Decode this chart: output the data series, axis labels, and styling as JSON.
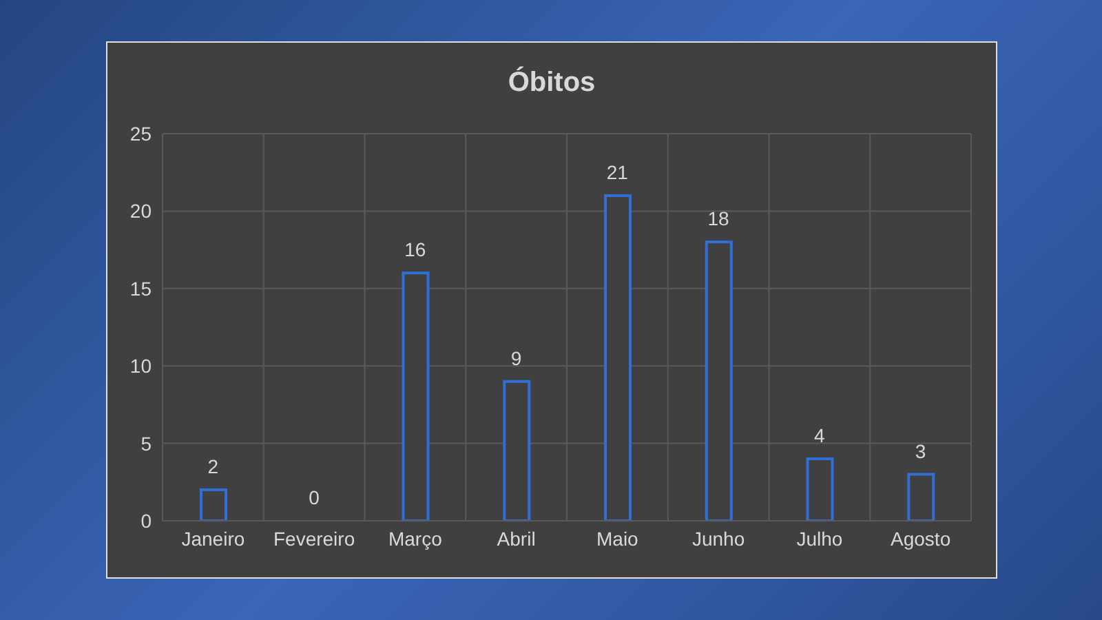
{
  "chart_data": {
    "type": "bar",
    "title": "Óbitos",
    "categories": [
      "Janeiro",
      "Fevereiro",
      "Março",
      "Abril",
      "Maio",
      "Junho",
      "Julho",
      "Agosto"
    ],
    "values": [
      2,
      0,
      16,
      9,
      21,
      18,
      4,
      3
    ],
    "color": "#2f6fd6",
    "ylim": [
      0,
      25
    ],
    "yticks": [
      0,
      5,
      10,
      15,
      20,
      25
    ],
    "grid": true,
    "data_labels": true
  }
}
